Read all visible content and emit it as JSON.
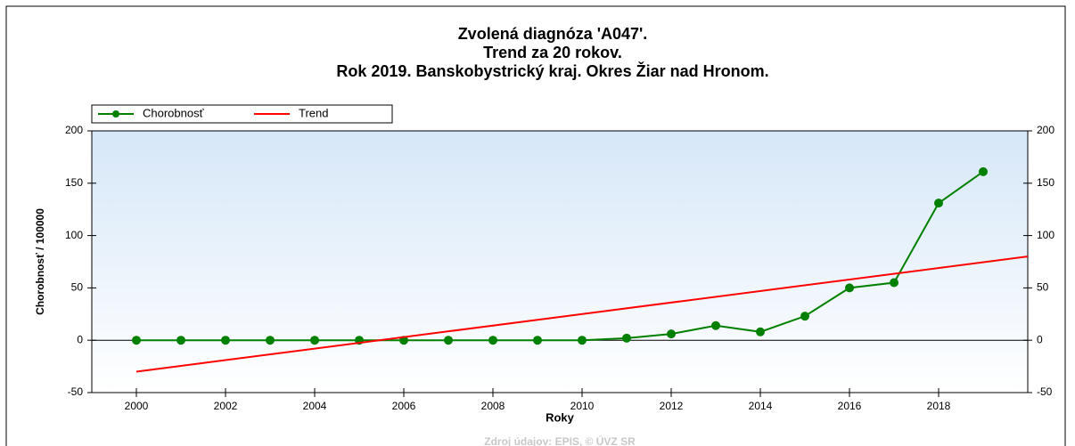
{
  "chart_data": {
    "type": "line",
    "title": [
      "Zvolená diagnóza 'A047'.",
      "Trend za 20 rokov.",
      "Rok 2019. Banskobystrický kraj. Okres Žiar nad Hronom."
    ],
    "xlabel": "Roky",
    "ylabel": "Chorobnosť / 100000",
    "source": "Zdroj údajov: EPIS, © ÚVZ SR",
    "x": [
      2000,
      2001,
      2002,
      2003,
      2004,
      2005,
      2006,
      2007,
      2008,
      2009,
      2010,
      2011,
      2012,
      2013,
      2014,
      2015,
      2016,
      2017,
      2018,
      2019
    ],
    "series": [
      {
        "name": "Chorobnosť",
        "color": "#008000",
        "values": [
          0,
          0,
          0,
          0,
          0,
          0,
          0,
          0,
          0,
          0,
          0,
          2,
          6,
          14,
          8,
          23,
          50,
          55,
          131,
          161
        ]
      },
      {
        "name": "Trend",
        "color": "#ff0000",
        "x": [
          2000,
          2020
        ],
        "values": [
          -30,
          80
        ]
      }
    ],
    "xlim": [
      1999,
      2020
    ],
    "xticks": [
      2000,
      2002,
      2004,
      2006,
      2008,
      2010,
      2012,
      2014,
      2016,
      2018
    ],
    "ylim": [
      -50,
      200
    ],
    "yticks": [
      -50,
      0,
      50,
      100,
      150,
      200
    ],
    "y2lim": [
      -50,
      200
    ],
    "y2ticks": [
      -50,
      0,
      50,
      100,
      150,
      200
    ]
  }
}
